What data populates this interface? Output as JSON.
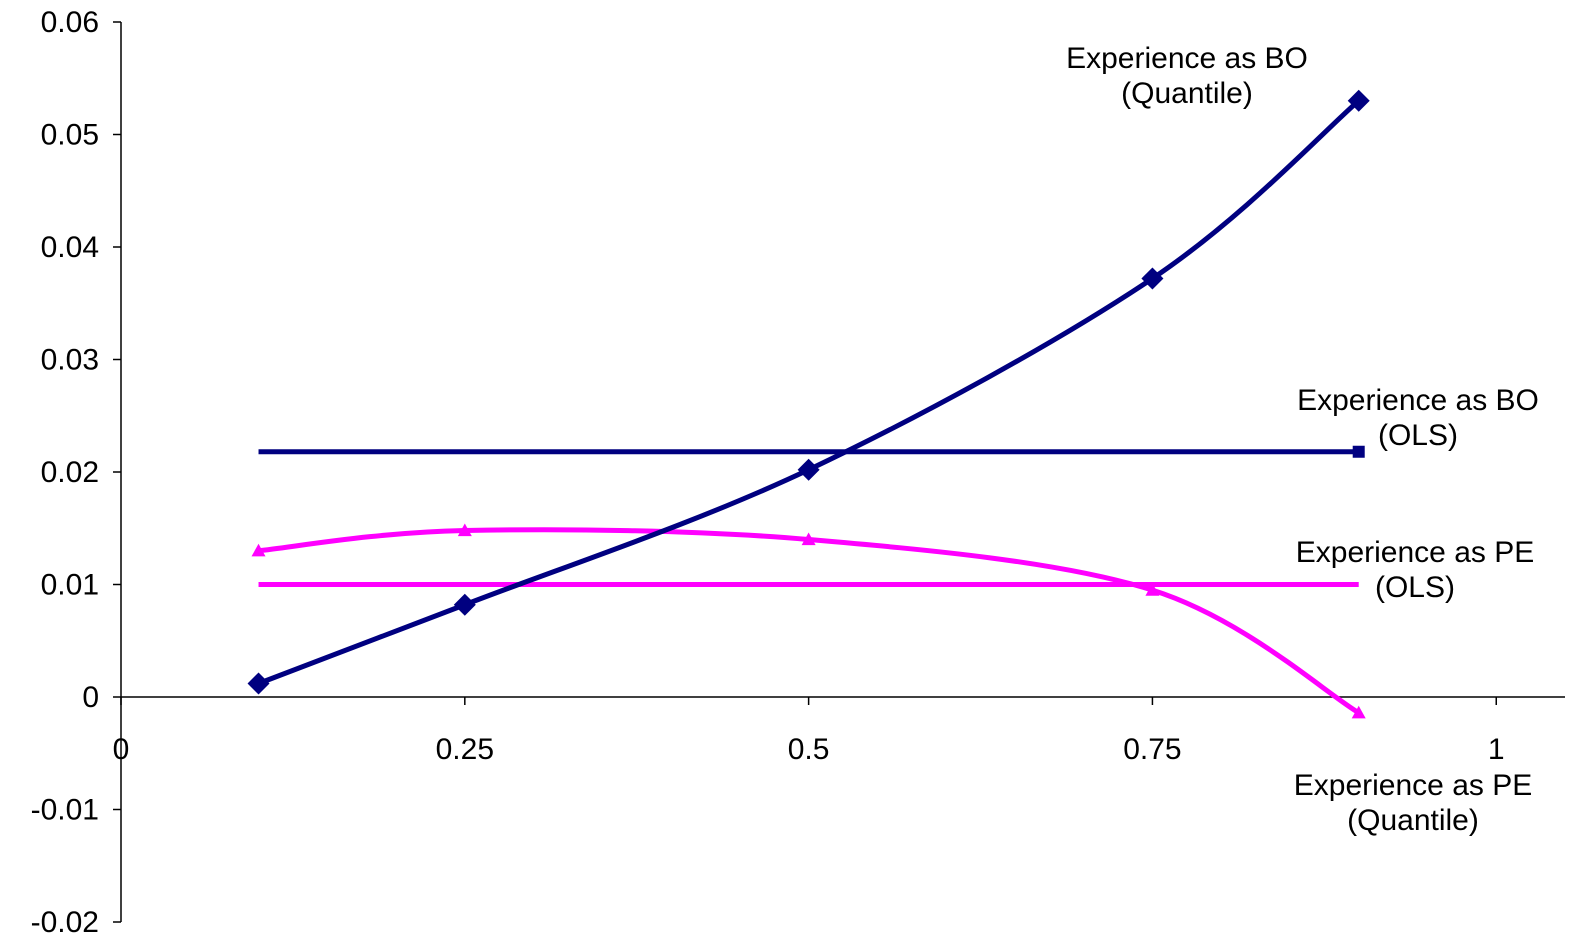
{
  "chart_data": {
    "type": "line",
    "title": "",
    "xlabel": "",
    "ylabel": "",
    "xlim": [
      0,
      1.05
    ],
    "ylim": [
      -0.02,
      0.06
    ],
    "x_ticks": [
      0,
      0.25,
      0.5,
      0.75,
      1
    ],
    "x_tick_labels": [
      "0",
      "0.25",
      "0.5",
      "0.75",
      "1"
    ],
    "y_ticks": [
      0.06,
      0.05,
      0.04,
      0.03,
      0.02,
      0.01,
      0,
      -0.01,
      -0.02
    ],
    "y_tick_labels": [
      "0.06",
      "0.05",
      "0.04",
      "0.03",
      "0.02",
      "0.01",
      "0",
      "-0.01",
      "-0.02"
    ],
    "grid": false,
    "legend": "none",
    "series": [
      {
        "key": "bo_quantile",
        "color": "#000080",
        "marker": "diamond",
        "smooth": true,
        "x": [
          0.1,
          0.25,
          0.5,
          0.75,
          0.9
        ],
        "y": [
          0.0012,
          0.0082,
          0.0202,
          0.0372,
          0.053
        ]
      },
      {
        "key": "bo_ols",
        "color": "#000080",
        "marker": "square-end",
        "smooth": false,
        "x": [
          0.1,
          0.9
        ],
        "y": [
          0.0218,
          0.0218
        ]
      },
      {
        "key": "pe_quantile",
        "color": "#FF00FF",
        "marker": "triangle",
        "smooth": true,
        "x": [
          0.1,
          0.25,
          0.5,
          0.75,
          0.9
        ],
        "y": [
          0.013,
          0.0148,
          0.014,
          0.0095,
          -0.0014
        ]
      },
      {
        "key": "pe_ols",
        "color": "#FF00FF",
        "marker": "none",
        "smooth": false,
        "x": [
          0.1,
          0.9
        ],
        "y": [
          0.01,
          0.01
        ]
      }
    ],
    "annotations": [
      {
        "lines": [
          "Experience as BO",
          "(Quantile)"
        ],
        "anchor": "middle"
      },
      {
        "lines": [
          "Experience as BO",
          "(OLS)"
        ],
        "anchor": "middle"
      },
      {
        "lines": [
          "Experience as PE",
          "(OLS)"
        ],
        "anchor": "middle"
      },
      {
        "lines": [
          "Experience as PE",
          "(Quantile)"
        ],
        "anchor": "middle"
      }
    ]
  }
}
